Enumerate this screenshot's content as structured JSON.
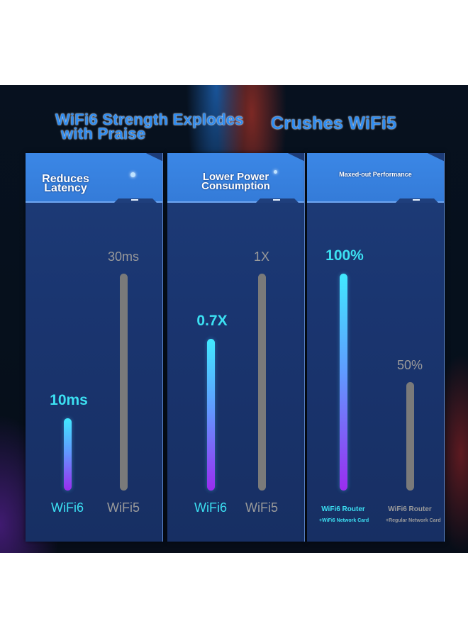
{
  "headline": {
    "line1": "WiFi6 Strength Explodes",
    "line2": "with Praise",
    "right": "Crushes WiFi5"
  },
  "colors": {
    "wifi6": "#3ce0f2",
    "wifi5": "#9a9a9a",
    "panel_cap": "#3b87e6",
    "panel_body": "#1a3570"
  },
  "chart_data": [
    {
      "type": "bar",
      "title": "Reduces Latency",
      "title_lines": [
        "Reduces",
        "Latency"
      ],
      "categories": [
        "WiFi6",
        "WiFi5"
      ],
      "values": [
        10,
        30
      ],
      "value_labels": [
        "10ms",
        "30ms"
      ],
      "unit": "ms",
      "ylim": [
        0,
        30
      ]
    },
    {
      "type": "bar",
      "title": "Lower Power Consumption",
      "title_lines": [
        "Lower Power",
        "Consumption"
      ],
      "categories": [
        "WiFi6",
        "WiFi5"
      ],
      "values": [
        0.7,
        1
      ],
      "value_labels": [
        "0.7X",
        "1X"
      ],
      "unit": "X",
      "ylim": [
        0,
        1
      ]
    },
    {
      "type": "bar",
      "title": "Maxed-out Performance",
      "title_lines": [
        "Maxed-out Performance"
      ],
      "categories": [
        "WiFi6 Router",
        "WiFi6 Router"
      ],
      "notes": [
        "+WiFi6 Network Card",
        "+Regular Network Card"
      ],
      "values": [
        100,
        50
      ],
      "value_labels": [
        "100%",
        "50%"
      ],
      "unit": "%",
      "ylim": [
        0,
        100
      ]
    }
  ]
}
